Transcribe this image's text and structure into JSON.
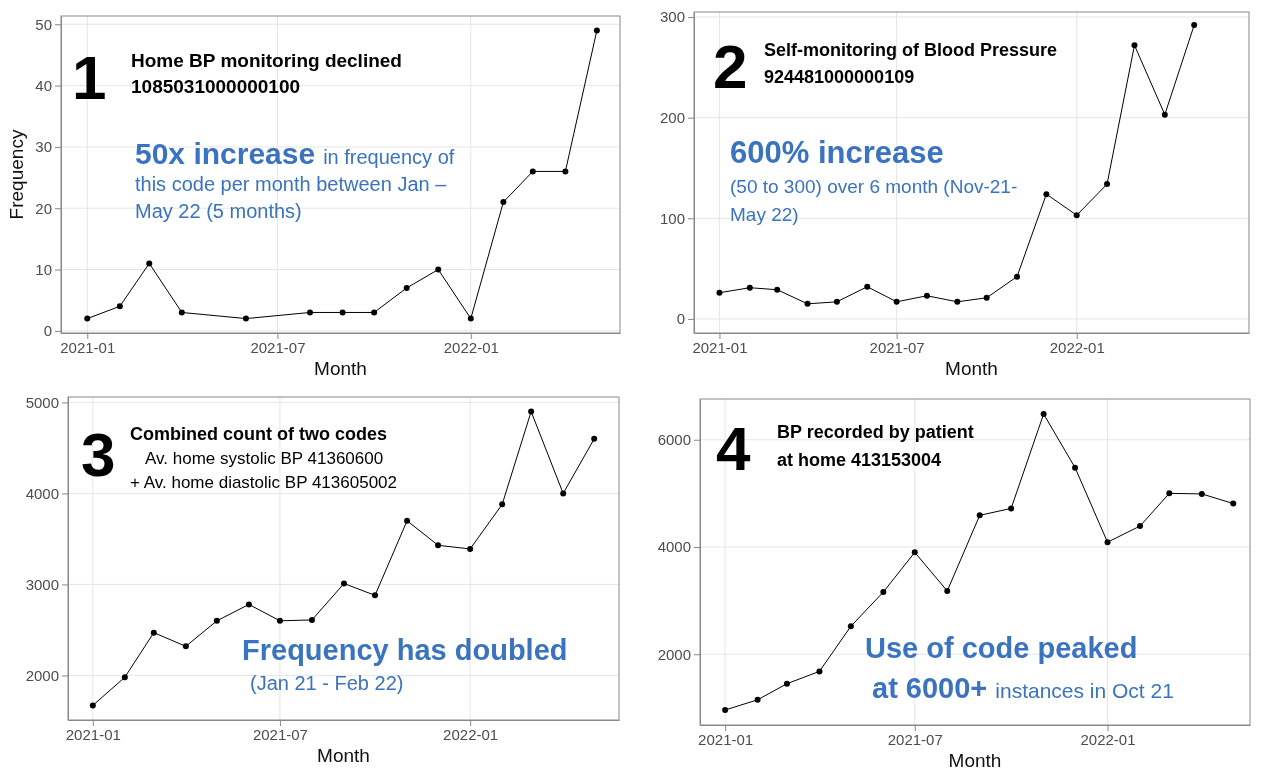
{
  "chart_data": [
    {
      "type": "line",
      "xlabel": "Month",
      "ylabel": "Frequency",
      "x": [
        "2021-01",
        "2021-02",
        "2021-03",
        "2021-04",
        "2021-06",
        "2021-08",
        "2021-09",
        "2021-10",
        "2021-11",
        "2021-12",
        "2022-01",
        "2022-02",
        "2022-03",
        "2022-04",
        "2022-05"
      ],
      "series": [
        {
          "color": "#000000",
          "values": [
            2,
            4,
            11,
            3,
            2,
            3,
            3,
            3,
            7,
            10,
            2,
            21,
            26,
            26,
            49
          ]
        }
      ],
      "xlim": [
        "2020-12-07",
        "2022-05-23"
      ],
      "xticks": [
        {
          "value": "2021-01",
          "label": "2021-01"
        },
        {
          "value": "2021-07",
          "label": "2021-07"
        },
        {
          "value": "2022-01",
          "label": "2022-01"
        }
      ],
      "ylim": [
        -0.35,
        51.35
      ],
      "yticks": [
        0,
        10,
        20,
        30,
        40,
        50
      ],
      "grid": true,
      "marker": "circle",
      "line_style": "solid",
      "annotations": [
        "1",
        "Home BP monitoring declined",
        "1085031000000100",
        "50x increase",
        "in frequency of",
        "this code per month between Jan –",
        "May 22 (5 months)"
      ]
    },
    {
      "type": "line",
      "xlabel": "Month",
      "x": [
        "2021-01",
        "2021-02",
        "2021-03",
        "2021-04",
        "2021-05",
        "2021-06",
        "2021-07",
        "2021-08",
        "2021-09",
        "2021-10",
        "2021-11",
        "2021-12",
        "2022-01",
        "2022-02",
        "2022-03",
        "2022-04",
        "2022-05"
      ],
      "series": [
        {
          "color": "#000000",
          "values": [
            26,
            31,
            29,
            15,
            17,
            32,
            17,
            23,
            17,
            21,
            42,
            124,
            103,
            134,
            272,
            203,
            292
          ]
        }
      ],
      "xlim": [
        "2020-12-06",
        "2022-06-26"
      ],
      "xticks": [
        {
          "value": "2021-01",
          "label": "2021-01"
        },
        {
          "value": "2021-07",
          "label": "2021-07"
        },
        {
          "value": "2022-01",
          "label": "2022-01"
        }
      ],
      "ylim": [
        -14,
        305
      ],
      "yticks": [
        0,
        100,
        200,
        300
      ],
      "grid": true,
      "marker": "circle",
      "line_style": "solid",
      "annotations": [
        "2",
        "Self-monitoring of Blood Pressure",
        "924481000000109",
        "600% increase",
        "(50 to 300) over 6 month (Nov-21-",
        "May 22)"
      ]
    },
    {
      "type": "line",
      "xlabel": "Month",
      "x": [
        "2021-01",
        "2021-02",
        "2021-03",
        "2021-04",
        "2021-05",
        "2021-06",
        "2021-07",
        "2021-08",
        "2021-09",
        "2021-10",
        "2021-11",
        "2021-12",
        "2022-01",
        "2022-02",
        "2022-03",
        "2022-04",
        "2022-05"
      ],
      "series": [
        {
          "color": "#000000",
          "values": [
            1670,
            1980,
            2470,
            2320,
            2600,
            2780,
            2600,
            2610,
            3010,
            2880,
            3700,
            3430,
            3390,
            3880,
            4900,
            4000,
            4600
          ]
        }
      ],
      "xlim": [
        "2020-12-08",
        "2022-05-25"
      ],
      "xticks": [
        {
          "value": "2021-01",
          "label": "2021-01"
        },
        {
          "value": "2021-07",
          "label": "2021-07"
        },
        {
          "value": "2022-01",
          "label": "2022-01"
        }
      ],
      "ylim": [
        1510,
        5060
      ],
      "yticks": [
        2000,
        3000,
        4000,
        5000
      ],
      "grid": true,
      "marker": "circle",
      "line_style": "solid",
      "annotations": [
        "3",
        "Combined count of two codes",
        "Av. home systolic BP 41360600",
        "+ Av. home diastolic BP 413605002",
        "Frequency has doubled",
        "(Jan 21 - Feb 22)"
      ]
    },
    {
      "type": "line",
      "xlabel": "Month",
      "x": [
        "2021-01",
        "2021-02",
        "2021-03",
        "2021-04",
        "2021-05",
        "2021-06",
        "2021-07",
        "2021-08",
        "2021-09",
        "2021-10",
        "2021-11",
        "2021-12",
        "2022-01",
        "2022-02",
        "2022-03",
        "2022-04",
        "2022-05"
      ],
      "series": [
        {
          "color": "#000000",
          "values": [
            960,
            1150,
            1450,
            1680,
            2520,
            3160,
            3900,
            3180,
            4590,
            4720,
            6480,
            5480,
            4090,
            4390,
            5000,
            4990,
            4810
          ]
        }
      ],
      "xlim": [
        "2020-12-08",
        "2022-05-17"
      ],
      "xticks": [
        {
          "value": "2021-01",
          "label": "2021-01"
        },
        {
          "value": "2021-07",
          "label": "2021-07"
        },
        {
          "value": "2022-01",
          "label": "2022-01"
        }
      ],
      "ylim": [
        680,
        6760
      ],
      "yticks": [
        2000,
        4000,
        6000
      ],
      "grid": true,
      "marker": "circle",
      "line_style": "solid",
      "annotations": [
        "4",
        "BP recorded by patient",
        "at home 413153004",
        "Use of code peaked",
        "at 6000+",
        "instances in Oct 21"
      ]
    }
  ]
}
